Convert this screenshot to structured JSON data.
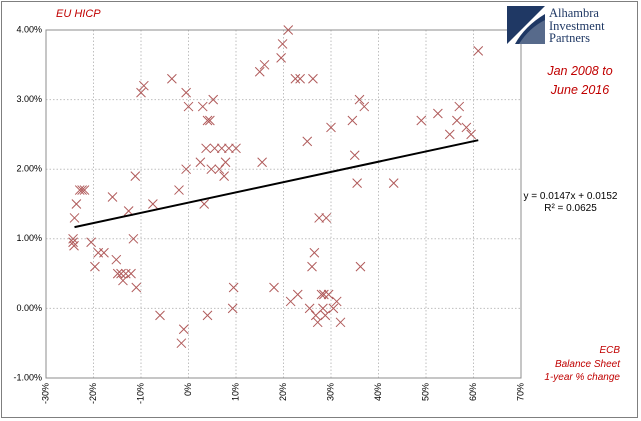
{
  "title": "EU HICP",
  "logo": {
    "icon": "alhambra-logo-icon",
    "lines": [
      "Alhambra",
      "Investment",
      "Partners"
    ],
    "color": "#1f3864"
  },
  "period": {
    "line1": "Jan 2008 to",
    "line2": "June 2016"
  },
  "trendline": {
    "equation": "y = 0.0147x + 0.0152",
    "r2": "R² = 0.0625",
    "slope": 0.0147,
    "intercept": 0.0152,
    "x_from": -0.24,
    "x_to": 0.61,
    "color": "#000000"
  },
  "x_title": {
    "line1": "ECB",
    "line2": "Balance Sheet",
    "line3": "1-year % change"
  },
  "colors": {
    "accent": "#c00000",
    "marker": "#b05a5a",
    "grid": "#bfbfbf"
  },
  "chart_data": {
    "type": "scatter",
    "title": "EU HICP",
    "xlabel": "ECB Balance Sheet 1-year % change",
    "ylabel": "EU HICP",
    "xlim": [
      -0.3,
      0.7
    ],
    "ylim": [
      -0.01,
      0.04
    ],
    "x_ticks": [
      -0.3,
      -0.2,
      -0.1,
      0,
      0.1,
      0.2,
      0.3,
      0.4,
      0.5,
      0.6,
      0.7
    ],
    "x_tick_labels": [
      "-30%",
      "-20%",
      "-10%",
      "0%",
      "10%",
      "20%",
      "30%",
      "40%",
      "50%",
      "60%",
      "70%"
    ],
    "y_ticks": [
      -0.01,
      0,
      0.01,
      0.02,
      0.03,
      0.04
    ],
    "y_tick_labels": [
      "-1.00%",
      "0.00%",
      "1.00%",
      "2.00%",
      "3.00%",
      "4.00%"
    ],
    "grid": {
      "vertical": true,
      "horizontal": true,
      "style": "dotted"
    },
    "marker": "x",
    "points": [
      {
        "x": -0.243,
        "y": 0.01
      },
      {
        "x": -0.243,
        "y": 0.0095
      },
      {
        "x": -0.241,
        "y": 0.009
      },
      {
        "x": -0.24,
        "y": 0.013
      },
      {
        "x": -0.236,
        "y": 0.015
      },
      {
        "x": -0.229,
        "y": 0.017
      },
      {
        "x": -0.224,
        "y": 0.017
      },
      {
        "x": -0.219,
        "y": 0.017
      },
      {
        "x": -0.205,
        "y": 0.0095
      },
      {
        "x": -0.197,
        "y": 0.006
      },
      {
        "x": -0.19,
        "y": 0.008
      },
      {
        "x": -0.178,
        "y": 0.008
      },
      {
        "x": -0.16,
        "y": 0.016
      },
      {
        "x": -0.152,
        "y": 0.007
      },
      {
        "x": -0.149,
        "y": 0.005
      },
      {
        "x": -0.142,
        "y": 0.005
      },
      {
        "x": -0.138,
        "y": 0.004
      },
      {
        "x": -0.132,
        "y": 0.005
      },
      {
        "x": -0.126,
        "y": 0.014
      },
      {
        "x": -0.121,
        "y": 0.005
      },
      {
        "x": -0.116,
        "y": 0.01
      },
      {
        "x": -0.112,
        "y": 0.019
      },
      {
        "x": -0.11,
        "y": 0.003
      },
      {
        "x": -0.1,
        "y": 0.031
      },
      {
        "x": -0.094,
        "y": 0.032
      },
      {
        "x": -0.075,
        "y": 0.015
      },
      {
        "x": -0.06,
        "y": -0.001
      },
      {
        "x": -0.035,
        "y": 0.033
      },
      {
        "x": -0.02,
        "y": 0.017
      },
      {
        "x": -0.015,
        "y": -0.005
      },
      {
        "x": -0.01,
        "y": -0.003
      },
      {
        "x": -0.005,
        "y": 0.02
      },
      {
        "x": -0.005,
        "y": 0.031
      },
      {
        "x": 0.0,
        "y": 0.029
      },
      {
        "x": 0.025,
        "y": 0.021
      },
      {
        "x": 0.03,
        "y": 0.029
      },
      {
        "x": 0.033,
        "y": 0.015
      },
      {
        "x": 0.037,
        "y": 0.023
      },
      {
        "x": 0.04,
        "y": 0.027
      },
      {
        "x": 0.04,
        "y": -0.001
      },
      {
        "x": 0.045,
        "y": 0.027
      },
      {
        "x": 0.048,
        "y": 0.02
      },
      {
        "x": 0.052,
        "y": 0.03
      },
      {
        "x": 0.055,
        "y": 0.023
      },
      {
        "x": 0.065,
        "y": 0.02
      },
      {
        "x": 0.07,
        "y": 0.023
      },
      {
        "x": 0.075,
        "y": 0.019
      },
      {
        "x": 0.078,
        "y": 0.021
      },
      {
        "x": 0.085,
        "y": 0.023
      },
      {
        "x": 0.095,
        "y": 0.003
      },
      {
        "x": 0.093,
        "y": 0.0
      },
      {
        "x": 0.1,
        "y": 0.023
      },
      {
        "x": 0.15,
        "y": 0.034
      },
      {
        "x": 0.155,
        "y": 0.021
      },
      {
        "x": 0.16,
        "y": 0.035
      },
      {
        "x": 0.18,
        "y": 0.003
      },
      {
        "x": 0.195,
        "y": 0.036
      },
      {
        "x": 0.198,
        "y": 0.038
      },
      {
        "x": 0.21,
        "y": 0.04
      },
      {
        "x": 0.215,
        "y": 0.001
      },
      {
        "x": 0.225,
        "y": 0.033
      },
      {
        "x": 0.23,
        "y": 0.002
      },
      {
        "x": 0.235,
        "y": 0.033
      },
      {
        "x": 0.25,
        "y": 0.024
      },
      {
        "x": 0.255,
        "y": 0.0
      },
      {
        "x": 0.26,
        "y": 0.006
      },
      {
        "x": 0.262,
        "y": 0.033
      },
      {
        "x": 0.265,
        "y": 0.008
      },
      {
        "x": 0.268,
        "y": -0.001
      },
      {
        "x": 0.272,
        "y": -0.002
      },
      {
        "x": 0.275,
        "y": 0.013
      },
      {
        "x": 0.28,
        "y": 0.002
      },
      {
        "x": 0.283,
        "y": 0.0
      },
      {
        "x": 0.285,
        "y": 0.002
      },
      {
        "x": 0.288,
        "y": -0.001
      },
      {
        "x": 0.29,
        "y": 0.013
      },
      {
        "x": 0.295,
        "y": 0.002
      },
      {
        "x": 0.3,
        "y": 0.026
      },
      {
        "x": 0.305,
        "y": 0.0
      },
      {
        "x": 0.312,
        "y": 0.001
      },
      {
        "x": 0.32,
        "y": -0.002
      },
      {
        "x": 0.345,
        "y": 0.027
      },
      {
        "x": 0.35,
        "y": 0.022
      },
      {
        "x": 0.355,
        "y": 0.018
      },
      {
        "x": 0.36,
        "y": 0.03
      },
      {
        "x": 0.362,
        "y": 0.006
      },
      {
        "x": 0.37,
        "y": 0.029
      },
      {
        "x": 0.432,
        "y": 0.018
      },
      {
        "x": 0.49,
        "y": 0.027
      },
      {
        "x": 0.525,
        "y": 0.028
      },
      {
        "x": 0.55,
        "y": 0.025
      },
      {
        "x": 0.565,
        "y": 0.027
      },
      {
        "x": 0.57,
        "y": 0.029
      },
      {
        "x": 0.585,
        "y": 0.026
      },
      {
        "x": 0.595,
        "y": 0.025
      },
      {
        "x": 0.61,
        "y": 0.037
      }
    ]
  }
}
